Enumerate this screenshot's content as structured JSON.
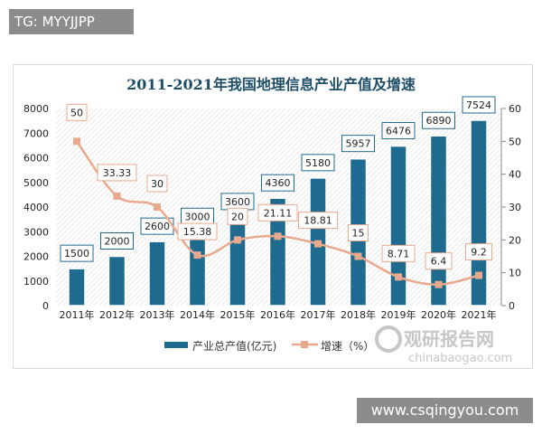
{
  "overlay": {
    "tag": "TG: MYYJJPP",
    "site": "www.csqingyou.com"
  },
  "watermark": {
    "cn": "观研报告网",
    "en": "chinabaogao.com"
  },
  "colors": {
    "bar": "#1f6a8f",
    "line": "#e8a98d",
    "title": "#1f4e68"
  },
  "chart_data": {
    "type": "bar+line",
    "title": "2011-2021年我国地理信息产业产值及增速",
    "categories": [
      "2011年",
      "2012年",
      "2013年",
      "2014年",
      "2015年",
      "2016年",
      "2017年",
      "2018年",
      "2019年",
      "2020年",
      "2021年"
    ],
    "series": [
      {
        "name": "产业总产值(亿元)",
        "type": "bar",
        "axis": "left",
        "values": [
          1500,
          2000,
          2600,
          3000,
          3600,
          4360,
          5180,
          5957,
          6476,
          6890,
          7524
        ]
      },
      {
        "name": "增速（%）",
        "type": "line",
        "axis": "right",
        "values": [
          50,
          33.33,
          30,
          15.38,
          20,
          21.11,
          18.81,
          15,
          8.71,
          6.4,
          9.2
        ]
      }
    ],
    "y_left": {
      "range": [
        0,
        8000
      ],
      "ticks": [
        0,
        1000,
        2000,
        3000,
        4000,
        5000,
        6000,
        7000,
        8000
      ]
    },
    "y_right": {
      "range": [
        0,
        60
      ],
      "ticks": [
        0,
        10,
        20,
        30,
        40,
        50,
        60
      ]
    },
    "legend": "bottom",
    "grid": false
  }
}
